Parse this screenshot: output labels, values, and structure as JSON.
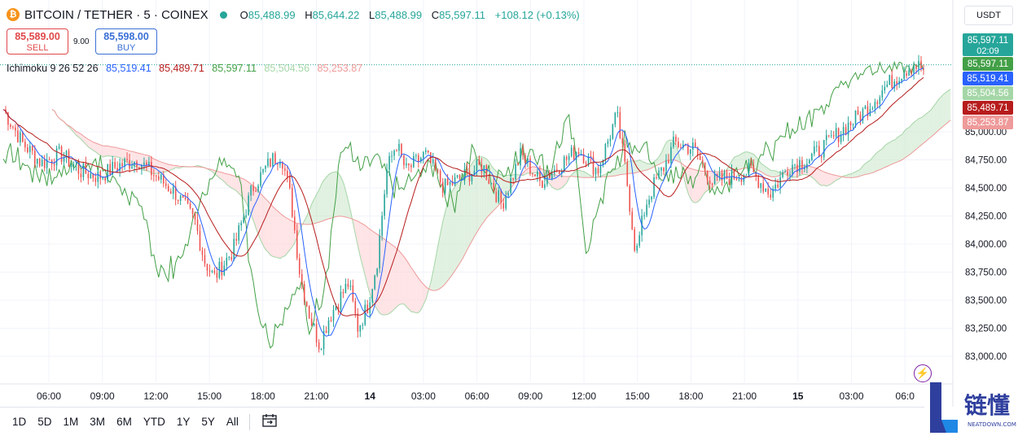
{
  "header": {
    "symbol": "BITCOIN / TETHER · 5 · COINEX",
    "coin_icon": "bitcoin-icon",
    "ohlc": {
      "o_label": "O",
      "o": "85,488.99",
      "h_label": "H",
      "h": "85,644.22",
      "l_label": "L",
      "l": "85,488.99",
      "c_label": "C",
      "c": "85,597.11",
      "change": "+108.12 (+0.13%)"
    }
  },
  "trade": {
    "sell_price": "85,589.00",
    "sell_label": "SELL",
    "spread": "9.00",
    "buy_price": "85,598.00",
    "buy_label": "BUY"
  },
  "indicator": {
    "name": "Ichimoku 9 26 52 26",
    "values": [
      "85,519.41",
      "85,489.71",
      "85,597.11",
      "85,504.56",
      "85,253.87"
    ]
  },
  "currency": "USDT",
  "bottom_bar": {
    "ranges": [
      "1D",
      "5D",
      "1M",
      "3M",
      "6M",
      "YTD",
      "1Y",
      "5Y",
      "All"
    ],
    "compare_icon": "calendar-range-icon"
  },
  "watermark": {
    "cn": "链懂",
    "en": "NEATDOWN.COM",
    "mark": "L"
  },
  "colors": {
    "up": "#26a69a",
    "down": "#ef5350",
    "conversion": "#2962ff",
    "base": "#b71c1c",
    "lagging": "#43a047",
    "span_a": "#a5d6a7",
    "span_b": "#ef9a9a"
  },
  "chart_data": {
    "type": "candlestick",
    "title": "BITCOIN / TETHER · 5 · COINEX",
    "y_ticks": [
      "85,000.00",
      "84,750.00",
      "84,500.00",
      "84,250.00",
      "84,000.00",
      "83,750.00",
      "83,500.00",
      "83,250.00",
      "83,000.00"
    ],
    "ylim": [
      82950,
      85800
    ],
    "x_ticks": [
      "06:00",
      "09:00",
      "12:00",
      "15:00",
      "18:00",
      "21:00",
      "14",
      "03:00",
      "06:00",
      "09:00",
      "12:00",
      "15:00",
      "18:00",
      "21:00",
      "15",
      "03:00",
      "06:0"
    ],
    "price_labels": [
      {
        "value": "85,597.11",
        "sub": "02:09",
        "color": "#26a69a"
      },
      {
        "value": "85,597.11",
        "color": "#43a047"
      },
      {
        "value": "85,519.41",
        "color": "#2962ff"
      },
      {
        "value": "85,504.56",
        "color": "#a5d6a7"
      },
      {
        "value": "85,489.71",
        "color": "#b71c1c"
      },
      {
        "value": "85,253.87",
        "color": "#ef9a9a"
      }
    ],
    "close_path": [
      [
        0,
        85200
      ],
      [
        0.02,
        84900
      ],
      [
        0.04,
        84720
      ],
      [
        0.06,
        84800
      ],
      [
        0.08,
        84650
      ],
      [
        0.1,
        84600
      ],
      [
        0.12,
        84700
      ],
      [
        0.14,
        84750
      ],
      [
        0.16,
        84600
      ],
      [
        0.18,
        84450
      ],
      [
        0.2,
        84200
      ],
      [
        0.21,
        83850
      ],
      [
        0.22,
        83700
      ],
      [
        0.24,
        83950
      ],
      [
        0.26,
        84500
      ],
      [
        0.28,
        84750
      ],
      [
        0.29,
        84800
      ],
      [
        0.3,
        84400
      ],
      [
        0.31,
        83700
      ],
      [
        0.32,
        83350
      ],
      [
        0.33,
        83100
      ],
      [
        0.34,
        83350
      ],
      [
        0.36,
        83650
      ],
      [
        0.37,
        83250
      ],
      [
        0.38,
        83450
      ],
      [
        0.39,
        83850
      ],
      [
        0.4,
        84650
      ],
      [
        0.41,
        84900
      ],
      [
        0.42,
        84650
      ],
      [
        0.44,
        84800
      ],
      [
        0.46,
        84500
      ],
      [
        0.48,
        84600
      ],
      [
        0.5,
        84700
      ],
      [
        0.52,
        84350
      ],
      [
        0.54,
        84800
      ],
      [
        0.56,
        84550
      ],
      [
        0.58,
        84700
      ],
      [
        0.6,
        84850
      ],
      [
        0.62,
        84650
      ],
      [
        0.64,
        85150
      ],
      [
        0.65,
        84600
      ],
      [
        0.66,
        83900
      ],
      [
        0.67,
        84350
      ],
      [
        0.68,
        84550
      ],
      [
        0.69,
        84700
      ],
      [
        0.7,
        84900
      ],
      [
        0.72,
        84850
      ],
      [
        0.74,
        84550
      ],
      [
        0.76,
        84600
      ],
      [
        0.78,
        84650
      ],
      [
        0.8,
        84450
      ],
      [
        0.82,
        84700
      ],
      [
        0.84,
        84750
      ],
      [
        0.86,
        84900
      ],
      [
        0.88,
        85050
      ],
      [
        0.9,
        85200
      ],
      [
        0.92,
        85400
      ],
      [
        0.94,
        85550
      ],
      [
        0.95,
        85600
      ],
      [
        0.96,
        85560
      ]
    ]
  }
}
